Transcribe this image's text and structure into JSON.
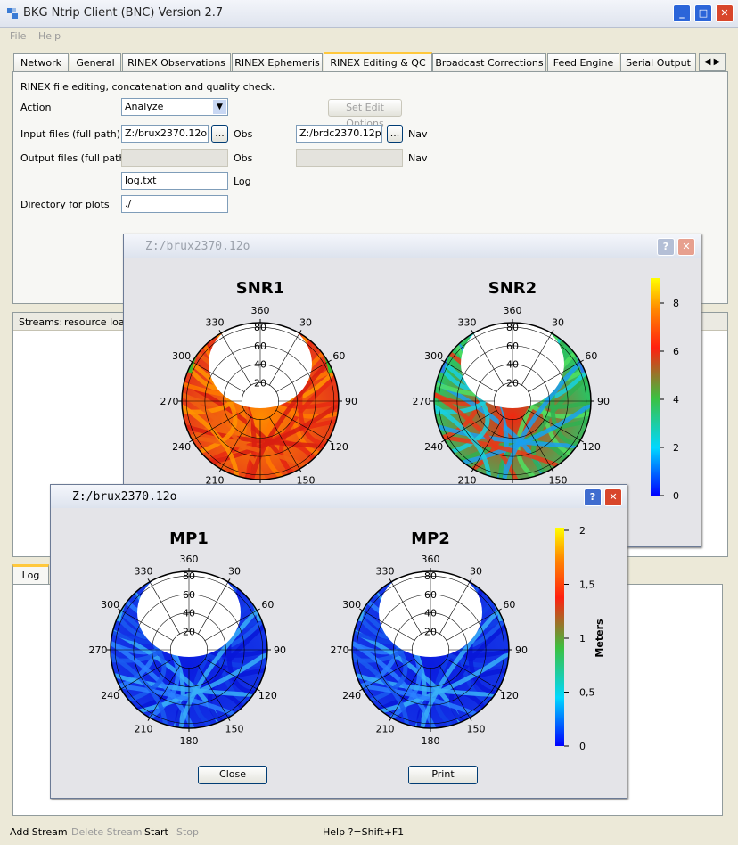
{
  "window": {
    "title": "BKG Ntrip Client (BNC) Version 2.7",
    "menu": [
      "File",
      "Help"
    ]
  },
  "tabs": [
    "Network",
    "General",
    "RINEX Observations",
    "RINEX Ephemeris",
    "RINEX Editing & QC",
    "Broadcast Corrections",
    "Feed Engine",
    "Serial Output"
  ],
  "panel": {
    "description": "RINEX file editing, concatenation and quality check.",
    "action_label": "Action",
    "action_value": "Analyze",
    "edit_button": "Set Edit Options",
    "input_label": "Input files (full path)",
    "input_obs": "Z:/brux2370.12o",
    "input_obs_suffix": "Obs",
    "input_nav": "Z:/brdc2370.12p",
    "input_nav_suffix": "Nav",
    "browse": "...",
    "output_label": "Output files (full path)",
    "output_obs_suffix": "Obs",
    "output_nav_suffix": "Nav",
    "log_value": "log.txt",
    "log_suffix": "Log",
    "plots_label": "Directory for plots",
    "plots_value": "./"
  },
  "streams": {
    "label": "Streams:",
    "column": "resource load"
  },
  "log_tab": "Log",
  "toolbar": [
    "Add Stream",
    "Delete Stream",
    "Start",
    "Stop"
  ],
  "status": "Help ?=Shift+F1",
  "polar": {
    "azimuth_labels": [
      "360",
      "30",
      "60",
      "90",
      "120",
      "150",
      "180",
      "210",
      "240",
      "270",
      "300",
      "330"
    ],
    "elevation_labels": [
      "20",
      "40",
      "60",
      "80"
    ]
  },
  "dialogs": [
    {
      "title": "Z:/brux2370.12o",
      "plots": [
        "SNR1",
        "SNR2"
      ],
      "colorbar_ticks": [
        "0",
        "2",
        "4",
        "6",
        "8"
      ]
    },
    {
      "title": "Z:/brux2370.12o",
      "plots": [
        "MP1",
        "MP2"
      ],
      "colorbar_ticks": [
        "0",
        "0,5",
        "1",
        "1,5",
        "2"
      ],
      "colorbar_label": "Meters",
      "buttons": [
        "Close",
        "Print"
      ]
    }
  ]
}
